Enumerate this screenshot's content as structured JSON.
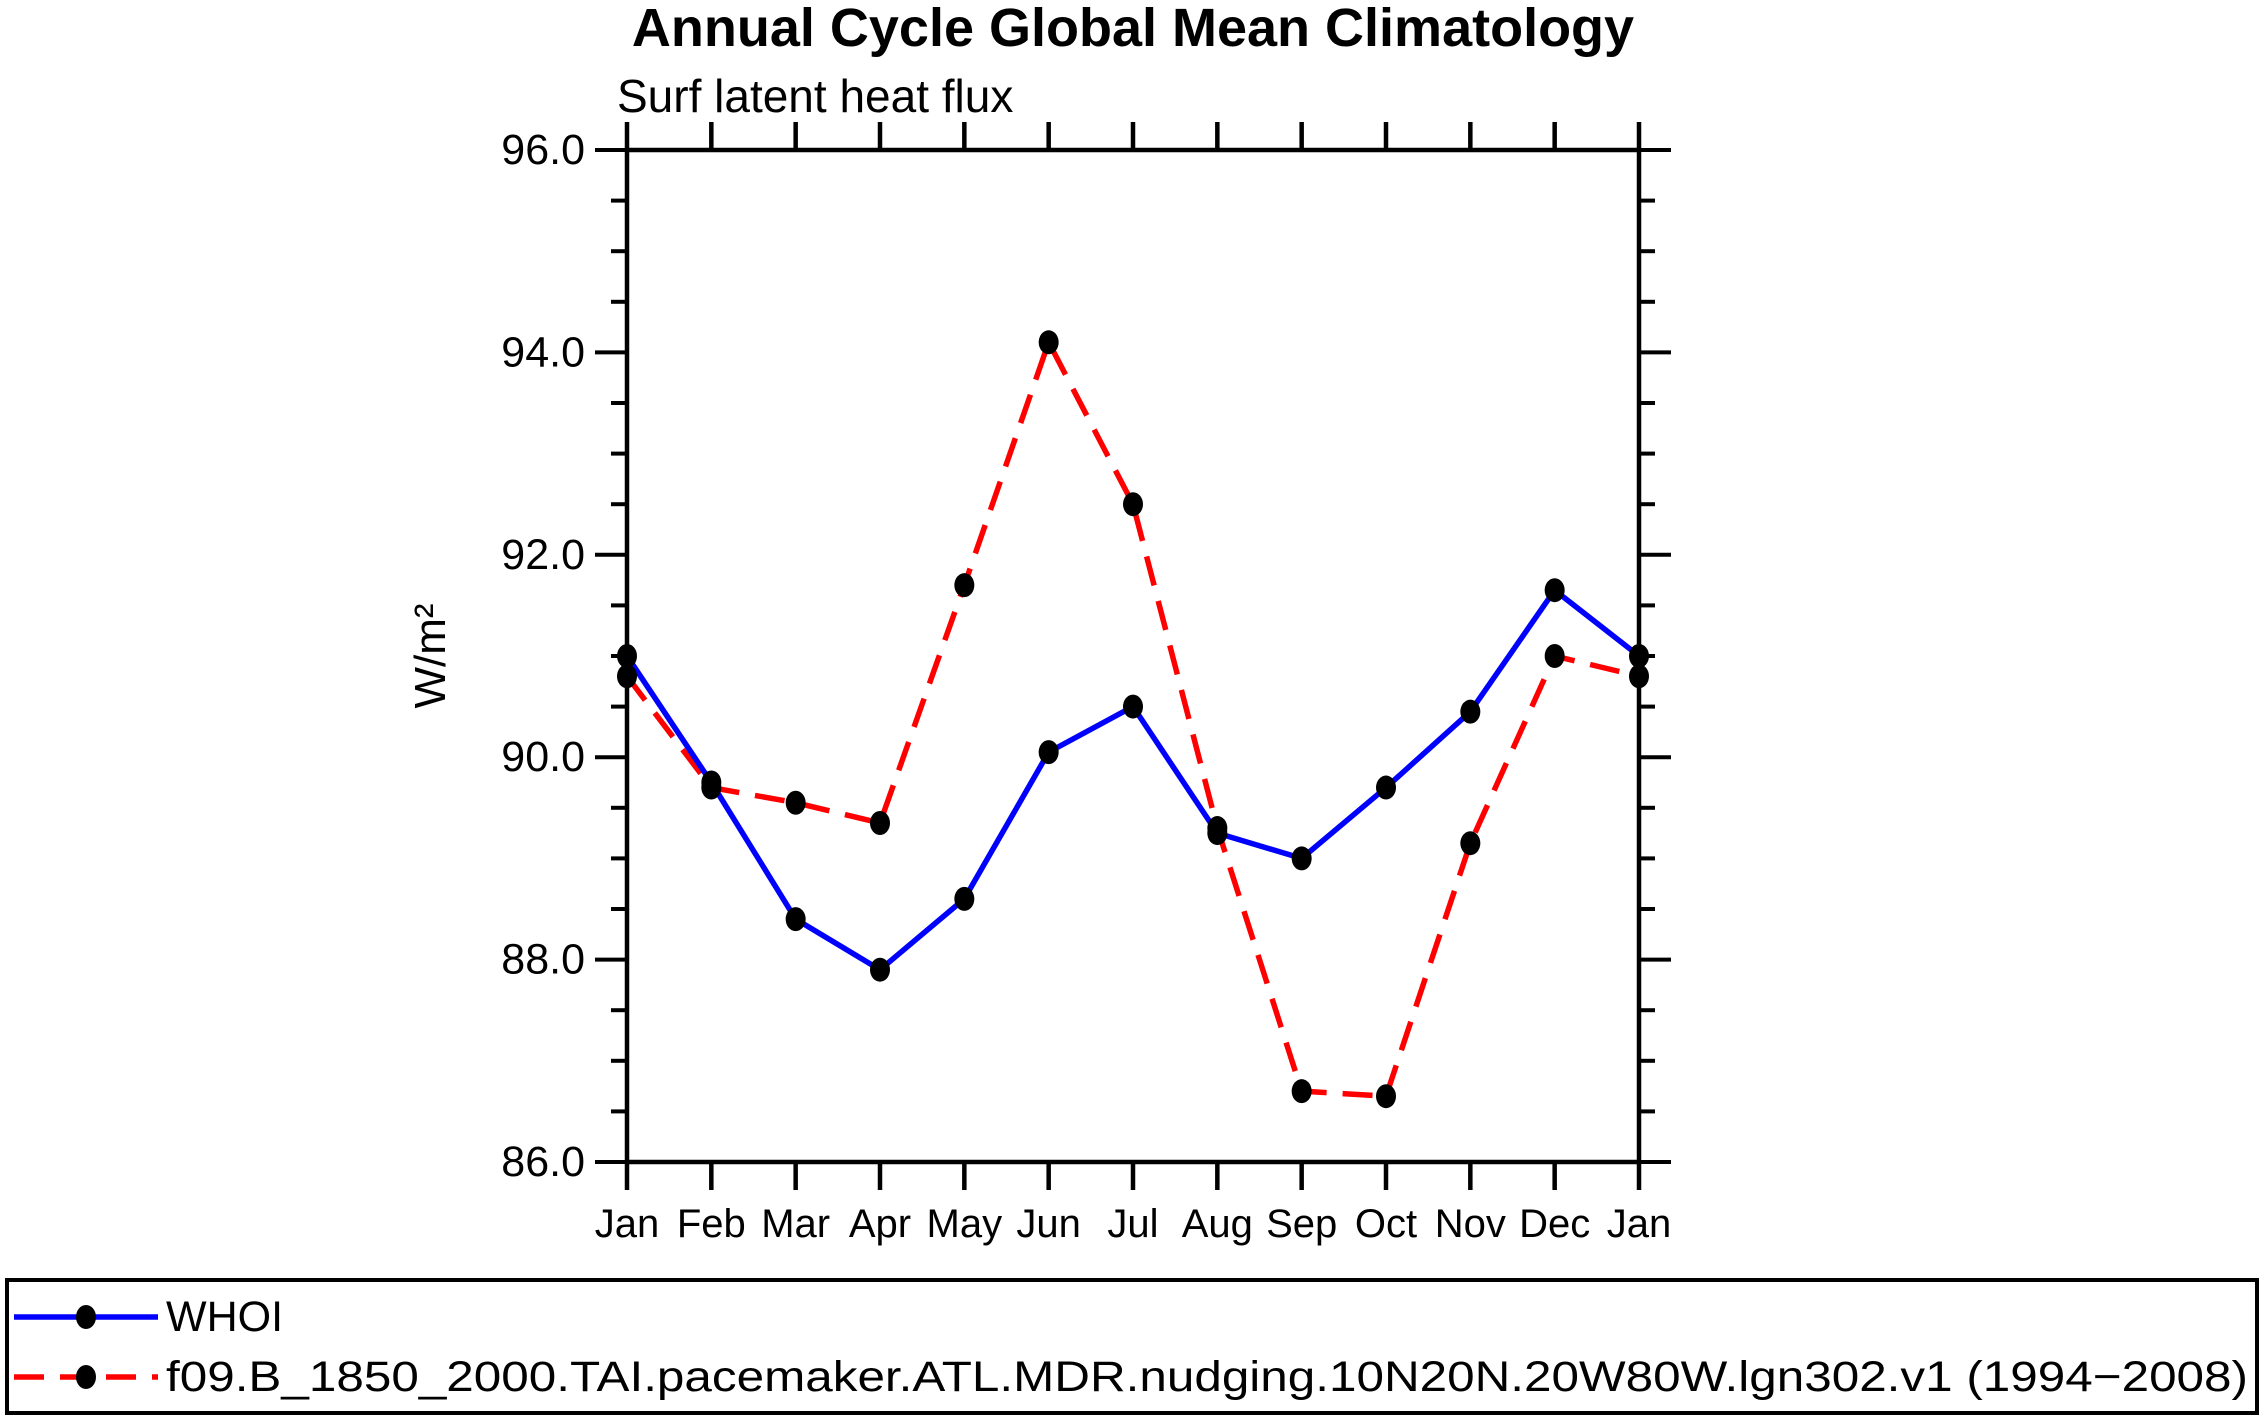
{
  "title": "Annual Cycle Global Mean Climatology",
  "chart_data": {
    "type": "line",
    "title": "Annual Cycle Global Mean Climatology",
    "subtitle": "Surf latent heat flux",
    "ylabel": "W/m²",
    "x_categories": [
      "Jan",
      "Feb",
      "Mar",
      "Apr",
      "May",
      "Jun",
      "Jul",
      "Aug",
      "Sep",
      "Oct",
      "Nov",
      "Dec",
      "Jan"
    ],
    "y_axis": {
      "min": 86.0,
      "max": 96.0,
      "major_step": 2.0,
      "minor_step": 0.5,
      "tick_labels": [
        "86.0",
        "88.0",
        "90.0",
        "92.0",
        "94.0",
        "96.0"
      ]
    },
    "grid": "off",
    "legend_position": "bottom",
    "marker": "filled-circle",
    "marker_color": "#000000",
    "series": [
      {
        "name": "WHOI",
        "color": "#0000ff",
        "line_style": "solid",
        "values": [
          91.0,
          89.75,
          88.4,
          87.9,
          88.6,
          90.05,
          90.5,
          89.25,
          89.0,
          89.7,
          90.45,
          91.65,
          91.0
        ]
      },
      {
        "name": "f09.B_1850_2000.TAI.pacemaker.ATL.MDR.nudging.10N20N.20W80W.lgn302.v1 (1994−2008)",
        "color": "#ff0000",
        "line_style": "dashed",
        "values": [
          90.8,
          89.7,
          89.55,
          89.35,
          91.7,
          94.1,
          92.5,
          89.3,
          86.7,
          86.65,
          89.15,
          91.0,
          90.8
        ]
      }
    ]
  }
}
